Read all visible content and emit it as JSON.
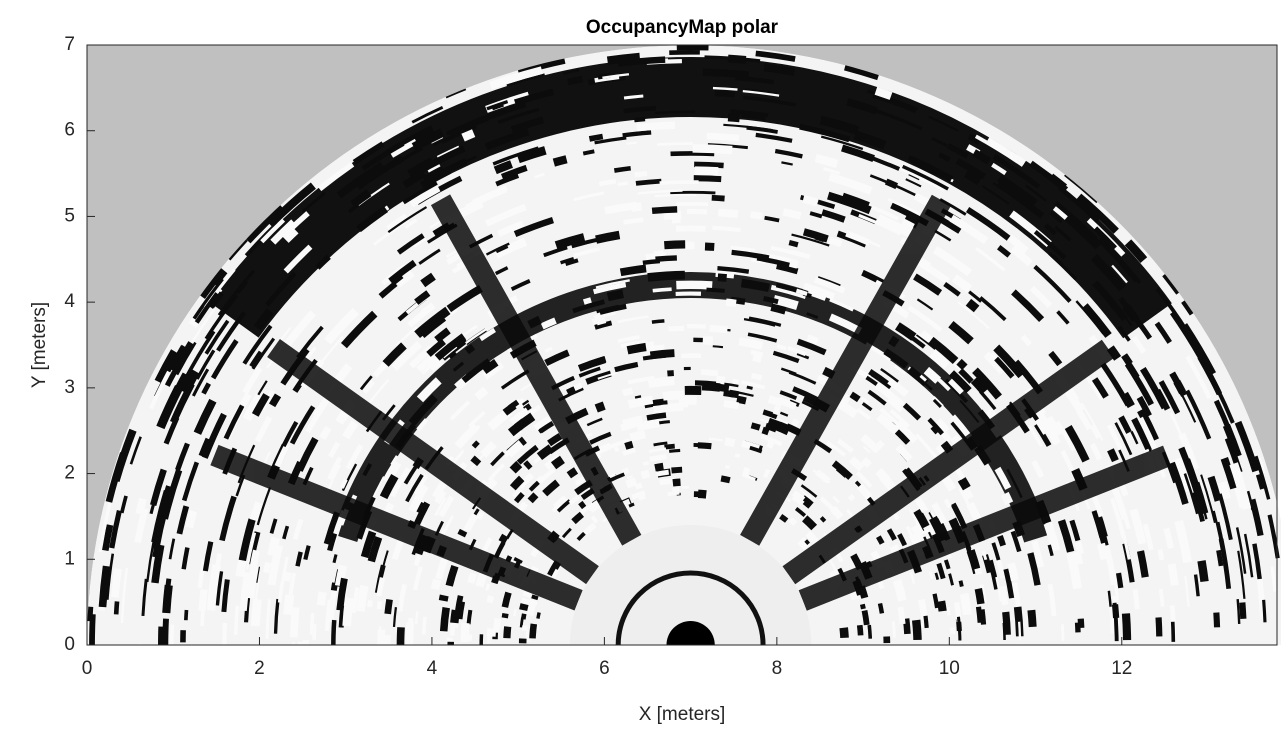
{
  "chart_data": {
    "type": "image",
    "title": "OccupancyMap polar",
    "xlabel": "X [meters]",
    "ylabel": "Y [meters]",
    "xlim": [
      0,
      13.8
    ],
    "ylim": [
      0,
      7
    ],
    "xticks": [
      0,
      2,
      4,
      6,
      8,
      10,
      12
    ],
    "yticks": [
      0,
      1,
      2,
      3,
      4,
      5,
      6,
      7
    ],
    "background": "#c0c0c0"
  }
}
